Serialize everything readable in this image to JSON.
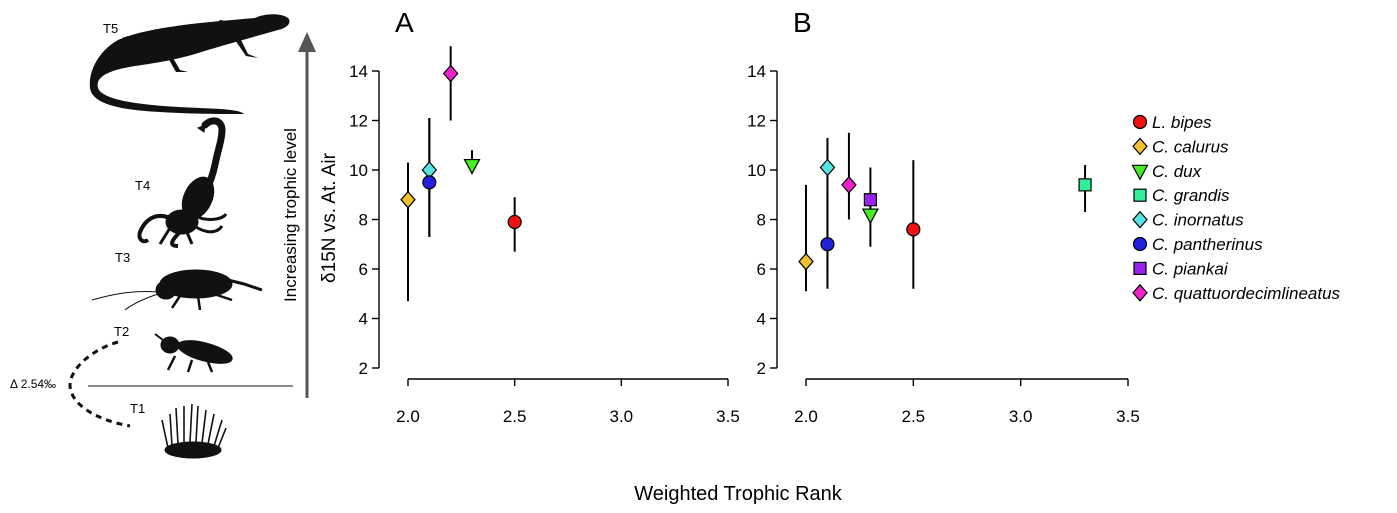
{
  "xlabel": "Weighted Trophic Rank",
  "trophic": {
    "arrow_label": "Increasing trophic level",
    "levels": [
      "T5",
      "T4",
      "T3",
      "T2",
      "T1"
    ],
    "delta_label": "Δ 2.54‰"
  },
  "panels": [
    {
      "label": "A"
    },
    {
      "label": "B"
    }
  ],
  "chart_data": [
    {
      "type": "scatter",
      "panel": "A",
      "xlabel": "Weighted Trophic Rank",
      "ylabel": "δ15N vs. At. Air",
      "xlim": [
        2.0,
        3.5
      ],
      "ylim": [
        2,
        15
      ],
      "xticks": [
        "2.0",
        "2.5",
        "3.0",
        "3.5"
      ],
      "yticks": [
        "2",
        "4",
        "6",
        "8",
        "10",
        "12",
        "14"
      ],
      "grid": false,
      "series": [
        {
          "name": "C. calurus",
          "marker": "diamond",
          "color": "#f2c12e",
          "x": 2.0,
          "y": 8.8,
          "err_low": 4.7,
          "err_high": 10.3
        },
        {
          "name": "C. inornatus",
          "marker": "diamond",
          "color": "#55e3e3",
          "x": 2.1,
          "y": 10.0,
          "err_low": 7.3,
          "err_high": 12.1
        },
        {
          "name": "C. pantherinus",
          "marker": "circle",
          "color": "#2222dd",
          "x": 2.1,
          "y": 9.5,
          "err_low": 7.3,
          "err_high": 12.1
        },
        {
          "name": "C. quattuordecimlineatus",
          "marker": "diamond",
          "color": "#ee22cc",
          "x": 2.2,
          "y": 13.9,
          "err_low": 12.0,
          "err_high": 15.0
        },
        {
          "name": "C. dux",
          "marker": "triangle-down",
          "color": "#44ee22",
          "x": 2.3,
          "y": 10.2,
          "err_low": 10.2,
          "err_high": 10.8
        },
        {
          "name": "L. bipes",
          "marker": "circle",
          "color": "#ee1111",
          "x": 2.5,
          "y": 7.9,
          "err_low": 6.7,
          "err_high": 8.9
        }
      ]
    },
    {
      "type": "scatter",
      "panel": "B",
      "xlabel": "Weighted Trophic Rank",
      "ylabel": "",
      "xlim": [
        2.0,
        3.5
      ],
      "ylim": [
        2,
        15
      ],
      "xticks": [
        "2.0",
        "2.5",
        "3.0",
        "3.5"
      ],
      "yticks": [
        "2",
        "4",
        "6",
        "8",
        "10",
        "12",
        "14"
      ],
      "grid": false,
      "legend_position": "right",
      "series": [
        {
          "name": "L. bipes",
          "marker": "circle",
          "color": "#ee1111",
          "x": 2.5,
          "y": 7.6,
          "err_low": 5.2,
          "err_high": 10.4
        },
        {
          "name": "C. calurus",
          "marker": "diamond",
          "color": "#f2c12e",
          "x": 2.0,
          "y": 6.3,
          "err_low": 5.1,
          "err_high": 9.4
        },
        {
          "name": "C. dux",
          "marker": "triangle-down",
          "color": "#44ee22",
          "x": 2.3,
          "y": 8.2,
          "err_low": 6.9,
          "err_high": 9.0
        },
        {
          "name": "C. grandis",
          "marker": "square",
          "color": "#33ee99",
          "x": 3.3,
          "y": 9.4,
          "err_low": 8.3,
          "err_high": 10.2
        },
        {
          "name": "C. inornatus",
          "marker": "diamond",
          "color": "#55e3e3",
          "x": 2.1,
          "y": 10.1,
          "err_low": 5.2,
          "err_high": 11.3
        },
        {
          "name": "C. pantherinus",
          "marker": "circle",
          "color": "#2222dd",
          "x": 2.1,
          "y": 7.0,
          "err_low": 5.8,
          "err_high": 9.1
        },
        {
          "name": "C. piankai",
          "marker": "square",
          "color": "#9922ee",
          "x": 2.3,
          "y": 8.8,
          "err_low": 8.0,
          "err_high": 10.1
        },
        {
          "name": "C. quattuordecimlineatus",
          "marker": "diamond",
          "color": "#ee22cc",
          "x": 2.2,
          "y": 9.4,
          "err_low": 8.0,
          "err_high": 11.5
        }
      ]
    }
  ],
  "legend": {
    "items": [
      {
        "label": "L. bipes",
        "marker": "circle",
        "color": "#ee1111"
      },
      {
        "label": "C. calurus",
        "marker": "diamond",
        "color": "#f2c12e"
      },
      {
        "label": "C. dux",
        "marker": "triangle-down",
        "color": "#44ee22"
      },
      {
        "label": "C. grandis",
        "marker": "square",
        "color": "#33ee99"
      },
      {
        "label": "C. inornatus",
        "marker": "diamond",
        "color": "#55e3e3"
      },
      {
        "label": "C. pantherinus",
        "marker": "circle",
        "color": "#2222dd"
      },
      {
        "label": "C. piankai",
        "marker": "square",
        "color": "#9922ee"
      },
      {
        "label": "C. quattuordecimlineatus",
        "marker": "diamond",
        "color": "#ee22cc"
      }
    ]
  }
}
